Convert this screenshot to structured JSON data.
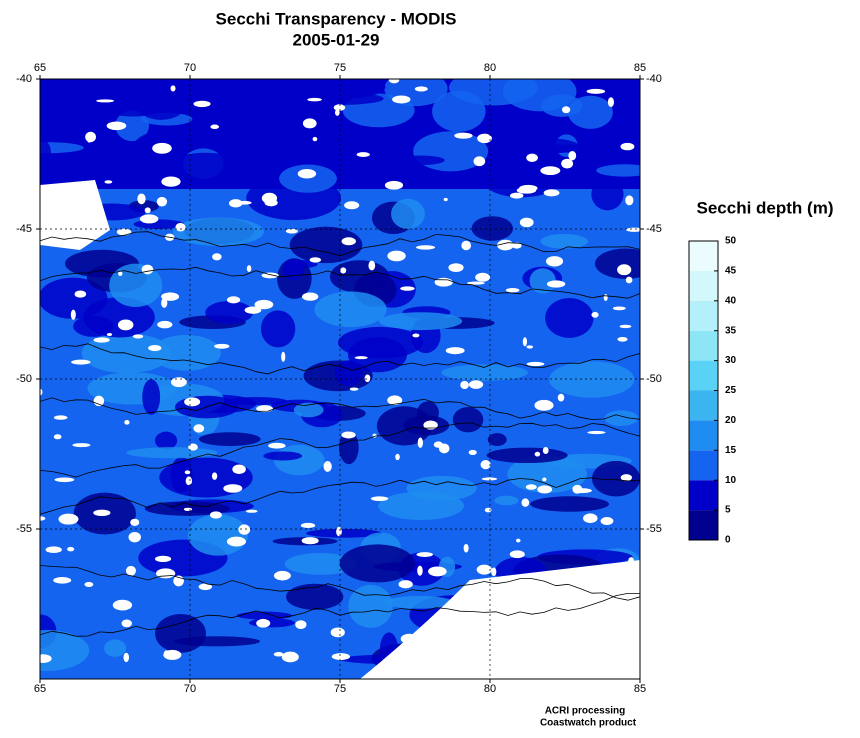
{
  "chart_data": {
    "type": "map",
    "title": "Secchi Transparency - MODIS",
    "subtitle": "2005-01-29",
    "xlim": [
      65,
      85
    ],
    "xticks": [
      65,
      70,
      75,
      80,
      85
    ],
    "ylim": [
      -40,
      -60
    ],
    "yticks": [
      -40,
      -45,
      -50,
      -55
    ],
    "grid": true,
    "colorbar": {
      "label": "Secchi depth (m)",
      "lim": [
        0,
        50
      ],
      "ticks": [
        0,
        5,
        10,
        15,
        20,
        25,
        30,
        35,
        40,
        45,
        50
      ],
      "colors": [
        "#000090",
        "#0000c8",
        "#1464f0",
        "#1e8cf0",
        "#3cb4f0",
        "#5ad2f5",
        "#8ce6f5",
        "#b4f0fa",
        "#d2f8fc",
        "#ebfcfe"
      ]
    },
    "footer": [
      "ACRI processing",
      "Coastwatch product"
    ]
  }
}
